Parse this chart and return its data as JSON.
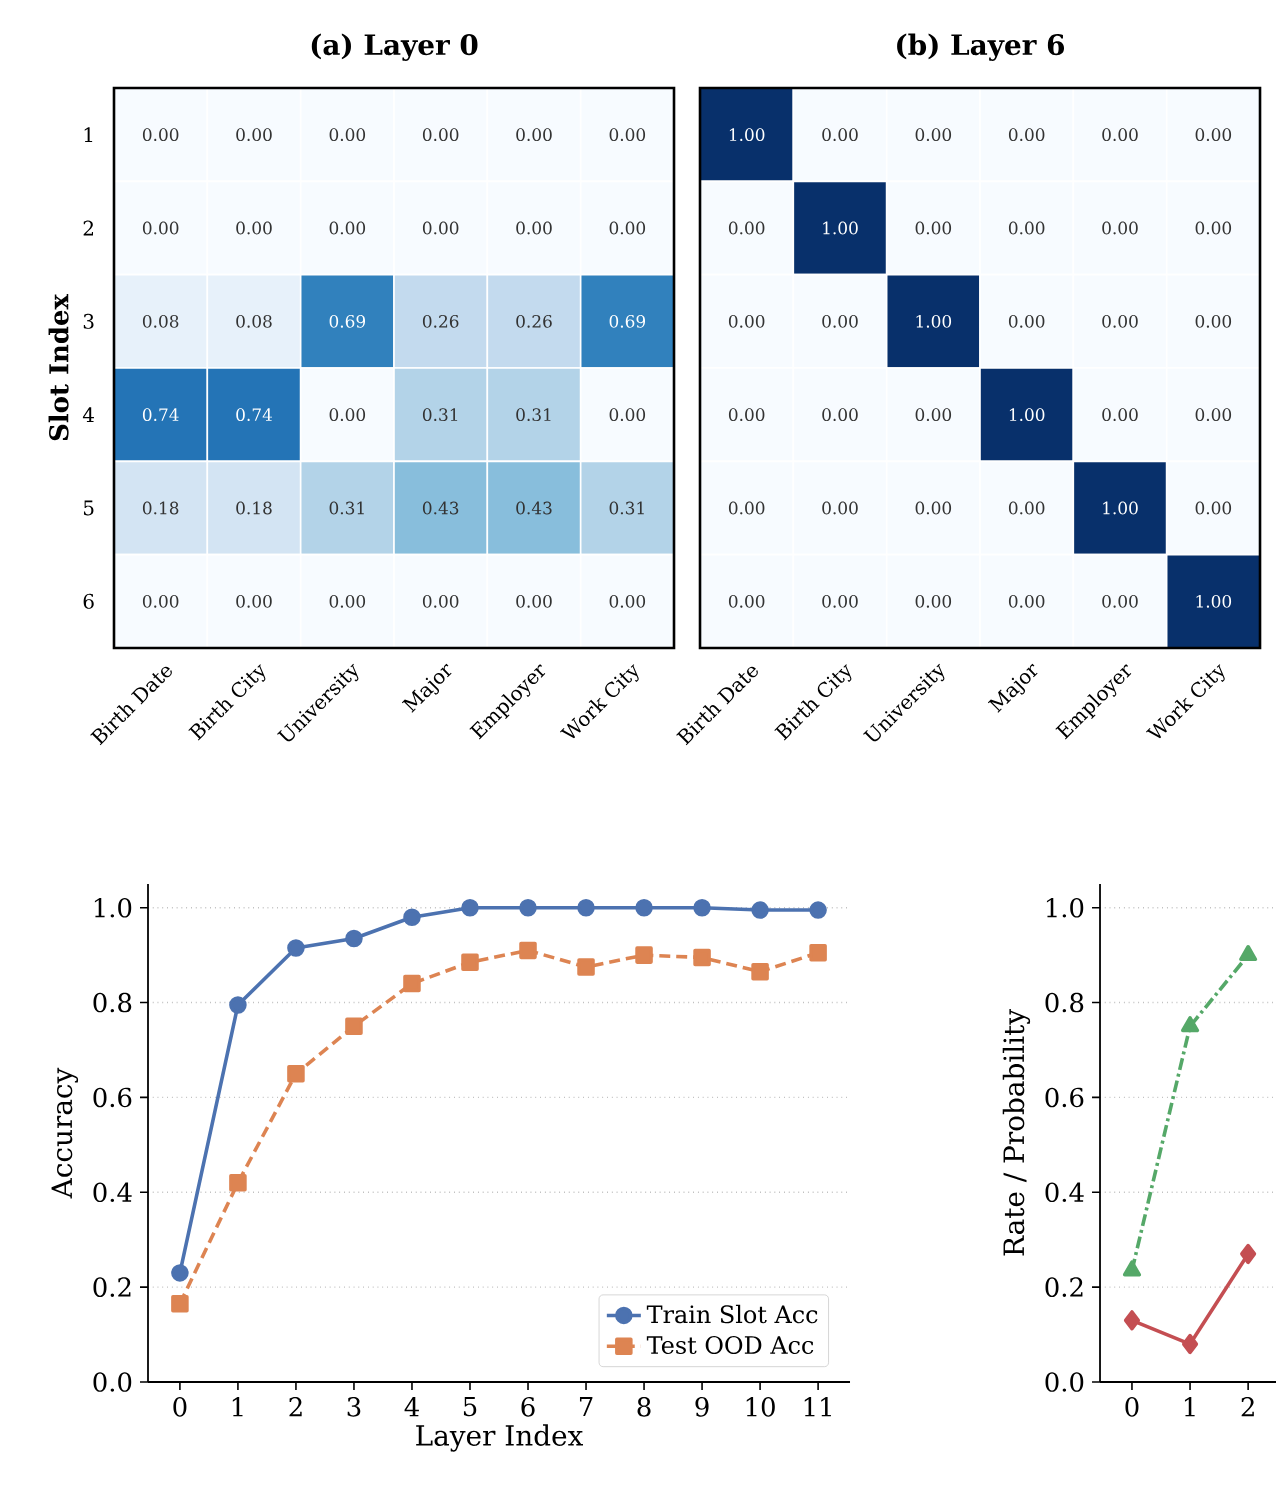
{
  "chart_data": [
    {
      "type": "heatmap",
      "title": "(a) Layer 0",
      "ylabel": "Slot Index",
      "categories": [
        "Birth Date",
        "Birth City",
        "University",
        "Major",
        "Employer",
        "Work City"
      ],
      "y_categories": [
        "1",
        "2",
        "3",
        "4",
        "5",
        "6"
      ],
      "cells": [
        [
          0,
          0,
          0,
          0,
          0,
          0
        ],
        [
          0,
          0,
          0,
          0,
          0,
          0
        ],
        [
          0.08,
          0.08,
          0.69,
          0.26,
          0.26,
          0.69
        ],
        [
          0.74,
          0.74,
          0,
          0.31,
          0.31,
          0
        ],
        [
          0.18,
          0.18,
          0.31,
          0.43,
          0.43,
          0.31
        ],
        [
          0,
          0,
          0,
          0,
          0,
          0
        ]
      ],
      "cell_labels": [
        [
          "0.00",
          "0.00",
          "0.00",
          "0.00",
          "0.00",
          "0.00"
        ],
        [
          "0.00",
          "0.00",
          "0.00",
          "0.00",
          "0.00",
          "0.00"
        ],
        [
          "0.08",
          "0.08",
          "0.69",
          "0.26",
          "0.26",
          "0.69"
        ],
        [
          "0.74",
          "0.74",
          "0.00",
          "0.31",
          "0.31",
          "0.00"
        ],
        [
          "0.18",
          "0.18",
          "0.31",
          "0.43",
          "0.43",
          "0.31"
        ],
        [
          "0.00",
          "0.00",
          "0.00",
          "0.00",
          "0.00",
          "0.00"
        ]
      ]
    },
    {
      "type": "heatmap",
      "title": "(b) Layer 6",
      "tick_labels": "x",
      "categories": [
        "Birth Date",
        "Birth City",
        "University",
        "Major",
        "Employer",
        "Work City"
      ],
      "y_categories": [
        "1",
        "2",
        "3",
        "4",
        "5",
        "6"
      ],
      "cells": [
        [
          1,
          0,
          0,
          0,
          0,
          0
        ],
        [
          0,
          1,
          0,
          0,
          0,
          0
        ],
        [
          0,
          0,
          1,
          0,
          0,
          0
        ],
        [
          0,
          0,
          0,
          1,
          0,
          0
        ],
        [
          0,
          0,
          0,
          0,
          1,
          0
        ],
        [
          0,
          0,
          0,
          0,
          0,
          1
        ]
      ],
      "cell_labels": [
        [
          "1.00",
          "0.00",
          "0.00",
          "0.00",
          "0.00",
          "0.00"
        ],
        [
          "0.00",
          "1.00",
          "0.00",
          "0.00",
          "0.00",
          "0.00"
        ],
        [
          "0.00",
          "0.00",
          "1.00",
          "0.00",
          "0.00",
          "0.00"
        ],
        [
          "0.00",
          "0.00",
          "0.00",
          "1.00",
          "0.00",
          "0.00"
        ],
        [
          "0.00",
          "0.00",
          "0.00",
          "0.00",
          "1.00",
          "0.00"
        ],
        [
          "0.00",
          "0.00",
          "0.00",
          "0.00",
          "0.00",
          "1.00"
        ]
      ]
    },
    {
      "type": "line",
      "xlabel": "Layer Index",
      "ylabel": "Accuracy",
      "x": [
        0,
        1,
        2,
        3,
        4,
        5,
        6,
        7,
        8,
        9,
        10,
        11
      ],
      "xlim": [
        -0.55,
        11.55
      ],
      "ylim": [
        0,
        1.05
      ],
      "xticks": [
        0,
        1,
        2,
        3,
        4,
        5,
        6,
        7,
        8,
        9,
        10,
        11
      ],
      "yticks": [
        {
          "value": 0,
          "label": "0.0"
        },
        {
          "value": 0.2,
          "label": "0.2"
        },
        {
          "value": 0.4,
          "label": "0.4"
        },
        {
          "value": 0.6,
          "label": "0.6"
        },
        {
          "value": 0.8,
          "label": "0.8"
        },
        {
          "value": 1,
          "label": "1.0"
        }
      ],
      "grid": "y",
      "legend": "bottom right",
      "series": [
        {
          "name": "Train Slot Acc",
          "color": "#4c72b0",
          "marker": "circle",
          "line_style": "solid",
          "values": [
            0.23,
            0.795,
            0.915,
            0.935,
            0.98,
            1.0,
            1.0,
            1.0,
            1.0,
            1.0,
            0.995,
            0.995
          ]
        },
        {
          "name": "Test OOD Acc",
          "color": "#dd8452",
          "marker": "square",
          "line_style": "dashed",
          "values": [
            0.165,
            0.42,
            0.65,
            0.75,
            0.84,
            0.885,
            0.91,
            0.875,
            0.9,
            0.895,
            0.865,
            0.905
          ]
        }
      ]
    },
    {
      "type": "line",
      "ylabel": "Rate / Probability",
      "x": [
        0,
        1,
        2
      ],
      "xlim": [
        -0.55,
        2.48
      ],
      "ylim": [
        0,
        1.05
      ],
      "xticks": [
        0,
        1,
        2
      ],
      "yticks": [
        {
          "value": 0,
          "label": "0.0"
        },
        {
          "value": 0.2,
          "label": "0.2"
        },
        {
          "value": 0.4,
          "label": "0.4"
        },
        {
          "value": 0.6,
          "label": "0.6"
        },
        {
          "value": 0.8,
          "label": "0.8"
        },
        {
          "value": 1,
          "label": "1.0"
        }
      ],
      "grid": "y",
      "series": [
        {
          "color": "#55a868",
          "marker": "triangle",
          "line_style": "dashdot",
          "values": [
            0.235,
            0.75,
            0.9
          ]
        },
        {
          "color": "#c44e52",
          "marker": "diamond",
          "line_style": "solid",
          "values": [
            0.13,
            0.08,
            0.27
          ]
        }
      ]
    }
  ]
}
